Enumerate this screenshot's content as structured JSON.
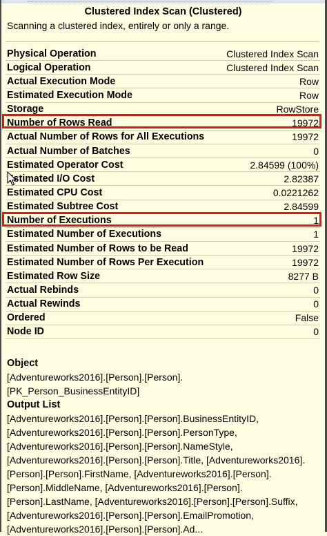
{
  "tooltip": {
    "title": "Clustered Index Scan (Clustered)",
    "description": "Scanning a clustered index, entirely or only a range.",
    "properties": [
      {
        "label": "Physical Operation",
        "value": "Clustered Index Scan"
      },
      {
        "label": "Logical Operation",
        "value": "Clustered Index Scan"
      },
      {
        "label": "Actual Execution Mode",
        "value": "Row"
      },
      {
        "label": "Estimated Execution Mode",
        "value": "Row"
      },
      {
        "label": "Storage",
        "value": "RowStore"
      },
      {
        "label": "Number of Rows Read",
        "value": "19972"
      },
      {
        "label": "Actual Number of Rows for All Executions",
        "value": "19972"
      },
      {
        "label": "Actual Number of Batches",
        "value": "0"
      },
      {
        "label": "Estimated Operator Cost",
        "value": "2.84599 (100%)"
      },
      {
        "label": "Estimated I/O Cost",
        "value": "2.82387"
      },
      {
        "label": "Estimated CPU Cost",
        "value": "0.0221262"
      },
      {
        "label": "Estimated Subtree Cost",
        "value": "2.84599"
      },
      {
        "label": "Number of Executions",
        "value": "1"
      },
      {
        "label": "Estimated Number of Executions",
        "value": "1"
      },
      {
        "label": "Estimated Number of Rows to be Read",
        "value": "19972"
      },
      {
        "label": "Estimated Number of Rows Per Execution",
        "value": "19972"
      },
      {
        "label": "Estimated Row Size",
        "value": "8277 B"
      },
      {
        "label": "Actual Rebinds",
        "value": "0"
      },
      {
        "label": "Actual Rewinds",
        "value": "0"
      },
      {
        "label": "Ordered",
        "value": "False"
      },
      {
        "label": "Node ID",
        "value": "0"
      }
    ],
    "object": {
      "heading": "Object",
      "lines": [
        "[Adventureworks2016].[Person].[Person].",
        "[PK_Person_BusinessEntityID]"
      ]
    },
    "output_list": {
      "heading": "Output List",
      "lines": [
        "[Adventureworks2016].[Person].[Person].BusinessEntityID,",
        "[Adventureworks2016].[Person].[Person].PersonType,",
        "[Adventureworks2016].[Person].[Person].NameStyle,",
        "[Adventureworks2016].[Person].[Person].Title, [Adventureworks2016].",
        "[Person].[Person].FirstName, [Adventureworks2016].[Person].",
        "[Person].MiddleName, [Adventureworks2016].[Person].",
        "[Person].LastName, [Adventureworks2016].[Person].[Person].Suffix,",
        "[Adventureworks2016].[Person].[Person].EmailPromotion,",
        "[Adventureworks2016].[Person].[Person].Ad..."
      ]
    }
  },
  "colors": {
    "tooltip_background": "#fefee3",
    "highlight_border": "#e41414",
    "row_separator": "#d1d0ad"
  },
  "icons": {
    "cursor": "mouse-pointer-icon"
  }
}
